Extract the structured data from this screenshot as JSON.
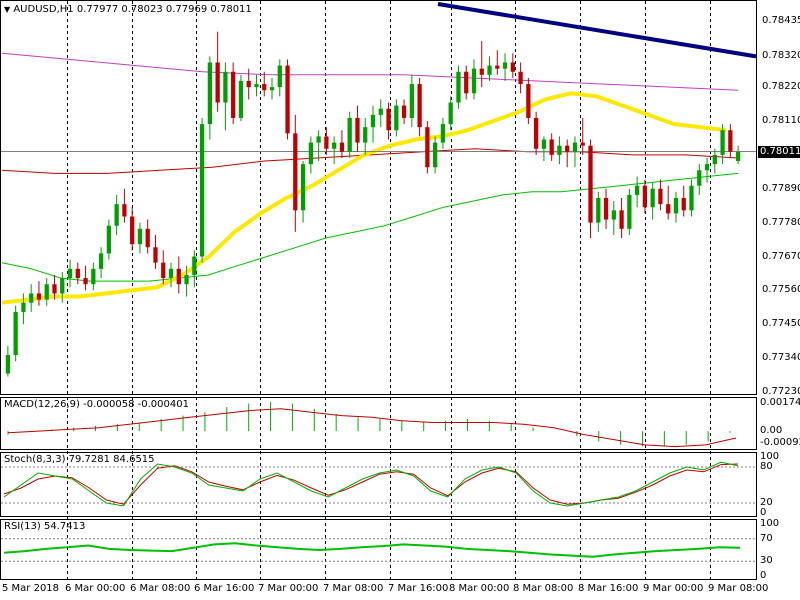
{
  "header": {
    "symbol": "AUDUSD,H1",
    "ohlc": "0.77977 0.78023 0.77969 0.78011"
  },
  "price_axis": {
    "ticks": [
      "0.78435",
      "0.78320",
      "0.78220",
      "0.78110",
      "0.78011",
      "0.77890",
      "0.77780",
      "0.77670",
      "0.77560",
      "0.77450",
      "0.77340",
      "0.77230"
    ],
    "current_price": "0.78011"
  },
  "macd": {
    "label": "MACD(12,26,9) -0.000058 -0.000401",
    "ticks": [
      "0.001749",
      "0.00",
      "-0.000923"
    ]
  },
  "stoch": {
    "label": "Stoch(8,3,3) 79.7281 84.6515",
    "ticks": [
      "100",
      "80",
      "20",
      "0"
    ]
  },
  "rsi": {
    "label": "RSI(13) 54.7413",
    "ticks": [
      "100",
      "70",
      "30",
      "0"
    ]
  },
  "time_axis": [
    "5 Mar 2018",
    "6 Mar 00:00",
    "6 Mar 08:00",
    "6 Mar 16:00",
    "7 Mar 00:00",
    "7 Mar 08:00",
    "7 Mar 16:00",
    "8 Mar 00:00",
    "8 Mar 08:00",
    "8 Mar 16:00",
    "9 Mar 00:00",
    "9 Mar 08:00"
  ],
  "colors": {
    "bull": "#00a000",
    "bear": "#c00000",
    "ema_yellow": "#ffe800",
    "ma_green": "#00c000",
    "ma_red": "#c00000",
    "ma_magenta": "#c040c0",
    "trendline": "#000080"
  },
  "chart_data": {
    "type": "candlestick",
    "symbol": "AUDUSD",
    "timeframe": "H1",
    "ylim": [
      0.7723,
      0.7849
    ],
    "candles": [
      [
        0.7729,
        0.7738,
        0.7728,
        0.7735
      ],
      [
        0.7735,
        0.7751,
        0.7733,
        0.7749
      ],
      [
        0.7749,
        0.7755,
        0.7745,
        0.7752
      ],
      [
        0.7752,
        0.7758,
        0.7749,
        0.7755
      ],
      [
        0.7755,
        0.7759,
        0.7751,
        0.7753
      ],
      [
        0.7753,
        0.776,
        0.7751,
        0.7758
      ],
      [
        0.7758,
        0.7761,
        0.7753,
        0.7755
      ],
      [
        0.7755,
        0.7762,
        0.7752,
        0.776
      ],
      [
        0.776,
        0.7766,
        0.7757,
        0.7763
      ],
      [
        0.7763,
        0.7765,
        0.7758,
        0.776
      ],
      [
        0.776,
        0.7764,
        0.7756,
        0.7758
      ],
      [
        0.7758,
        0.7765,
        0.7756,
        0.7763
      ],
      [
        0.7763,
        0.777,
        0.776,
        0.7768
      ],
      [
        0.7768,
        0.7779,
        0.7766,
        0.7777
      ],
      [
        0.7777,
        0.7787,
        0.7774,
        0.7784
      ],
      [
        0.7784,
        0.7789,
        0.7778,
        0.778
      ],
      [
        0.778,
        0.7783,
        0.7769,
        0.7771
      ],
      [
        0.7771,
        0.7778,
        0.7768,
        0.7776
      ],
      [
        0.7776,
        0.7779,
        0.7768,
        0.777
      ],
      [
        0.777,
        0.7774,
        0.7763,
        0.7765
      ],
      [
        0.7765,
        0.7769,
        0.7758,
        0.776
      ],
      [
        0.776,
        0.7765,
        0.7757,
        0.7763
      ],
      [
        0.7763,
        0.7767,
        0.7755,
        0.7758
      ],
      [
        0.7758,
        0.7764,
        0.7754,
        0.7761
      ],
      [
        0.7761,
        0.7769,
        0.7757,
        0.7767
      ],
      [
        0.7767,
        0.7812,
        0.7765,
        0.781
      ],
      [
        0.781,
        0.7832,
        0.7805,
        0.783
      ],
      [
        0.783,
        0.784,
        0.7814,
        0.7817
      ],
      [
        0.7817,
        0.783,
        0.7808,
        0.7827
      ],
      [
        0.7827,
        0.783,
        0.781,
        0.7812
      ],
      [
        0.7812,
        0.7826,
        0.7811,
        0.7824
      ],
      [
        0.7824,
        0.7828,
        0.7818,
        0.7822
      ],
      [
        0.7822,
        0.7826,
        0.7819,
        0.7823
      ],
      [
        0.7823,
        0.7827,
        0.7819,
        0.7821
      ],
      [
        0.7821,
        0.7825,
        0.7818,
        0.7822
      ],
      [
        0.7822,
        0.7831,
        0.7819,
        0.7829
      ],
      [
        0.7829,
        0.7831,
        0.7805,
        0.7807
      ],
      [
        0.7807,
        0.7813,
        0.7775,
        0.7782
      ],
      [
        0.7782,
        0.7798,
        0.7778,
        0.7797
      ],
      [
        0.7797,
        0.7806,
        0.7794,
        0.7804
      ],
      [
        0.7804,
        0.7808,
        0.7798,
        0.7806
      ],
      [
        0.7806,
        0.7809,
        0.78,
        0.7802
      ],
      [
        0.7802,
        0.7806,
        0.7797,
        0.7804
      ],
      [
        0.7804,
        0.7808,
        0.7799,
        0.7801
      ],
      [
        0.7801,
        0.7814,
        0.7799,
        0.7812
      ],
      [
        0.7812,
        0.7816,
        0.7801,
        0.7804
      ],
      [
        0.7804,
        0.7812,
        0.78,
        0.7809
      ],
      [
        0.7809,
        0.7816,
        0.7804,
        0.7813
      ],
      [
        0.7813,
        0.7818,
        0.7809,
        0.7815
      ],
      [
        0.7815,
        0.7817,
        0.7805,
        0.7808
      ],
      [
        0.7808,
        0.7818,
        0.7806,
        0.7816
      ],
      [
        0.7816,
        0.7818,
        0.781,
        0.7812
      ],
      [
        0.7812,
        0.7826,
        0.7809,
        0.7823
      ],
      [
        0.7823,
        0.7825,
        0.7806,
        0.7809
      ],
      [
        0.7809,
        0.7811,
        0.7794,
        0.7796
      ],
      [
        0.7796,
        0.7806,
        0.7794,
        0.7804
      ],
      [
        0.7804,
        0.7812,
        0.7802,
        0.781
      ],
      [
        0.781,
        0.7819,
        0.7808,
        0.7817
      ],
      [
        0.7817,
        0.7829,
        0.7815,
        0.7827
      ],
      [
        0.7827,
        0.7829,
        0.7818,
        0.782
      ],
      [
        0.782,
        0.7831,
        0.7818,
        0.7828
      ],
      [
        0.7828,
        0.7837,
        0.7822,
        0.7826
      ],
      [
        0.7826,
        0.7832,
        0.7824,
        0.7829
      ],
      [
        0.7829,
        0.7834,
        0.7826,
        0.7828
      ],
      [
        0.7828,
        0.7833,
        0.7824,
        0.783
      ],
      [
        0.783,
        0.7833,
        0.7825,
        0.7827
      ],
      [
        0.7827,
        0.783,
        0.782,
        0.7823
      ],
      [
        0.7823,
        0.7825,
        0.781,
        0.7812
      ],
      [
        0.7812,
        0.7814,
        0.78,
        0.7802
      ],
      [
        0.7802,
        0.7806,
        0.7798,
        0.7805
      ],
      [
        0.7805,
        0.7807,
        0.7798,
        0.78
      ],
      [
        0.78,
        0.7806,
        0.7797,
        0.7803
      ],
      [
        0.7803,
        0.7805,
        0.7796,
        0.7801
      ],
      [
        0.7801,
        0.7806,
        0.7796,
        0.7804
      ],
      [
        0.7804,
        0.7812,
        0.78,
        0.7803
      ],
      [
        0.7803,
        0.7805,
        0.7773,
        0.7778
      ],
      [
        0.7778,
        0.7788,
        0.7775,
        0.7786
      ],
      [
        0.7786,
        0.7789,
        0.7776,
        0.7779
      ],
      [
        0.7779,
        0.7785,
        0.7774,
        0.7782
      ],
      [
        0.7782,
        0.7786,
        0.7773,
        0.7776
      ],
      [
        0.7776,
        0.7789,
        0.7774,
        0.7787
      ],
      [
        0.7787,
        0.7793,
        0.7783,
        0.779
      ],
      [
        0.779,
        0.7792,
        0.7781,
        0.7783
      ],
      [
        0.7783,
        0.7791,
        0.7779,
        0.7789
      ],
      [
        0.7789,
        0.7792,
        0.7782,
        0.7784
      ],
      [
        0.7784,
        0.779,
        0.7779,
        0.7781
      ],
      [
        0.7781,
        0.7788,
        0.7778,
        0.7786
      ],
      [
        0.7786,
        0.779,
        0.778,
        0.7782
      ],
      [
        0.7782,
        0.7792,
        0.778,
        0.779
      ],
      [
        0.779,
        0.7797,
        0.7787,
        0.7795
      ],
      [
        0.7795,
        0.7799,
        0.7791,
        0.7797
      ],
      [
        0.7797,
        0.7802,
        0.7794,
        0.78
      ],
      [
        0.78,
        0.781,
        0.7797,
        0.7808
      ],
      [
        0.7808,
        0.781,
        0.7799,
        0.7801
      ],
      [
        0.7798,
        0.7803,
        0.7797,
        0.7801
      ]
    ],
    "ema_yellow": [
      0.7752,
      0.7753,
      0.7754,
      0.7754,
      0.7755,
      0.7756,
      0.7757,
      0.7761,
      0.7767,
      0.7775,
      0.7781,
      0.7786,
      0.779,
      0.7795,
      0.78,
      0.7803,
      0.7805,
      0.7806,
      0.7808,
      0.7811,
      0.7814,
      0.7818,
      0.782,
      0.7819,
      0.7816,
      0.7813,
      0.781,
      0.7809,
      0.7808
    ],
    "ma_green": [
      0.7765,
      0.7763,
      0.776,
      0.7759,
      0.7759,
      0.7759,
      0.776,
      0.7761,
      0.7764,
      0.7767,
      0.777,
      0.7773,
      0.7775,
      0.7777,
      0.778,
      0.7783,
      0.7785,
      0.7787,
      0.7788,
      0.7788,
      0.7789,
      0.779,
      0.7791,
      0.7792,
      0.7793,
      0.7794
    ],
    "ma_red": [
      0.7795,
      0.7794,
      0.7794,
      0.7795,
      0.7796,
      0.7798,
      0.7799,
      0.78,
      0.7801,
      0.7802,
      0.7801,
      0.7801,
      0.78,
      0.78,
      0.7799
    ],
    "ma_magenta": [
      0.7833,
      0.7831,
      0.7829,
      0.7827,
      0.7826,
      0.7826,
      0.7826,
      0.7825,
      0.7824,
      0.7823,
      0.7822,
      0.7821
    ],
    "trendline": [
      0.7849,
      0.7832
    ],
    "macd": {
      "ylim": [
        -0.000923,
        0.001749
      ],
      "histogram": [
        -0.0002,
        0.0,
        0.0001,
        0.0002,
        0.0003,
        0.0004,
        0.0005,
        0.0007,
        0.0009,
        0.0011,
        0.0014,
        0.0016,
        0.0017,
        0.0016,
        0.0013,
        0.001,
        0.0008,
        0.0007,
        0.0006,
        0.0005,
        0.0006,
        0.0007,
        0.0006,
        0.0004,
        0.0002,
        0.0,
        -0.0003,
        -0.0006,
        -0.0008,
        -0.0009,
        -0.0009,
        -0.0008,
        -0.0006,
        -0.0001
      ],
      "signal": [
        -0.0001,
        0.0,
        0.0001,
        0.0002,
        0.0004,
        0.0006,
        0.0008,
        0.001,
        0.0012,
        0.0013,
        0.0011,
        0.0009,
        0.0008,
        0.0006,
        0.0005,
        0.0005,
        0.0005,
        0.0004,
        0.0002,
        -0.0002,
        -0.0005,
        -0.0008,
        -0.0009,
        -0.0008,
        -0.0004
      ]
    },
    "stochastic": {
      "ylim": [
        0,
        100
      ],
      "main": [
        30,
        50,
        70,
        65,
        60,
        40,
        20,
        15,
        60,
        85,
        80,
        70,
        50,
        45,
        40,
        60,
        70,
        55,
        40,
        30,
        45,
        60,
        70,
        75,
        65,
        40,
        30,
        60,
        75,
        80,
        70,
        40,
        20,
        15,
        20,
        25,
        30,
        40,
        55,
        70,
        80,
        75,
        88,
        82
      ],
      "signal": [
        35,
        45,
        60,
        65,
        62,
        45,
        25,
        18,
        50,
        78,
        82,
        72,
        55,
        48,
        42,
        55,
        66,
        58,
        45,
        33,
        42,
        55,
        68,
        72,
        68,
        45,
        32,
        55,
        70,
        78,
        72,
        45,
        25,
        18,
        20,
        25,
        28,
        38,
        50,
        65,
        75,
        72,
        84,
        85
      ]
    },
    "rsi": {
      "ylim": [
        0,
        100
      ],
      "values": [
        45,
        48,
        52,
        55,
        58,
        52,
        50,
        49,
        48,
        54,
        60,
        62,
        58,
        55,
        52,
        50,
        52,
        55,
        57,
        60,
        58,
        56,
        52,
        50,
        48,
        45,
        42,
        40,
        38,
        42,
        45,
        48,
        50,
        52,
        55,
        54
      ]
    }
  }
}
